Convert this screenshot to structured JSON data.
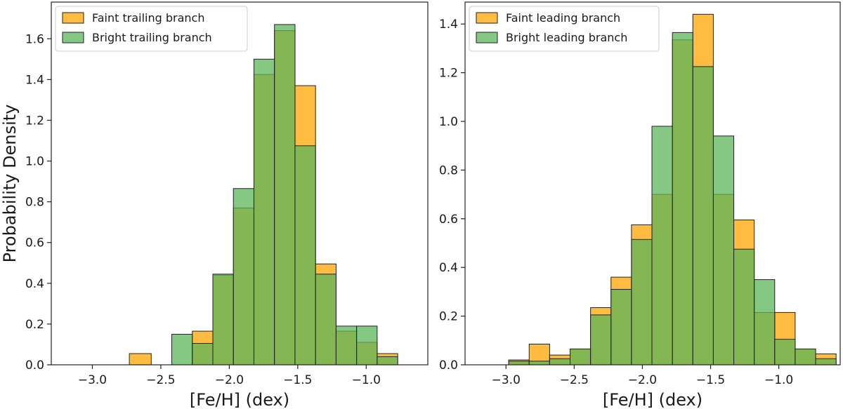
{
  "chart_data": [
    {
      "type": "bar",
      "title": "",
      "xlabel": "[Fe/H] (dex)",
      "ylabel": "Probability Density",
      "xlim": [
        -3.3,
        -0.55
      ],
      "ylim": [
        0,
        1.78
      ],
      "xticks": [
        -3.0,
        -2.5,
        -2.0,
        -1.5,
        -1.0
      ],
      "xtick_labels": [
        "−3.0",
        "−2.5",
        "−2.0",
        "−1.5",
        "−1.0"
      ],
      "yticks": [
        0.0,
        0.2,
        0.4,
        0.6,
        0.8,
        1.0,
        1.2,
        1.4,
        1.6
      ],
      "ytick_labels": [
        "0.0",
        "0.2",
        "0.4",
        "0.6",
        "0.8",
        "1.0",
        "1.2",
        "1.4",
        "1.6"
      ],
      "legend_position": "top-left",
      "series": [
        {
          "name": "Faint trailing branch",
          "color": "#ffa500",
          "bin_edges": [
            -2.73,
            -2.57,
            -2.42,
            -2.27,
            -2.12,
            -1.97,
            -1.82,
            -1.67,
            -1.52,
            -1.37,
            -1.22,
            -1.07,
            -0.92,
            -0.77
          ],
          "values": [
            0.055,
            0.0,
            0.0,
            0.165,
            0.44,
            0.77,
            1.425,
            1.64,
            1.37,
            0.495,
            0.165,
            0.11,
            0.055
          ]
        },
        {
          "name": "Bright trailing branch",
          "color": "#5bb55b",
          "bin_edges": [
            -2.73,
            -2.57,
            -2.42,
            -2.27,
            -2.12,
            -1.97,
            -1.82,
            -1.67,
            -1.52,
            -1.37,
            -1.22,
            -1.07,
            -0.92,
            -0.77
          ],
          "values": [
            0.0,
            0.0,
            0.15,
            0.105,
            0.445,
            0.865,
            1.5,
            1.67,
            1.075,
            0.445,
            0.19,
            0.19,
            0.04
          ]
        }
      ]
    },
    {
      "type": "bar",
      "title": "",
      "xlabel": "[Fe/H] (dex)",
      "ylabel": "",
      "xlim": [
        -3.3,
        -0.55
      ],
      "ylim": [
        0,
        1.49
      ],
      "xticks": [
        -3.0,
        -2.5,
        -2.0,
        -1.5,
        -1.0
      ],
      "xtick_labels": [
        "−3.0",
        "−2.5",
        "−2.0",
        "−1.5",
        "−1.0"
      ],
      "yticks": [
        0.0,
        0.2,
        0.4,
        0.6,
        0.8,
        1.0,
        1.2,
        1.4
      ],
      "ytick_labels": [
        "0.0",
        "0.2",
        "0.4",
        "0.6",
        "0.8",
        "1.0",
        "1.2",
        "1.4"
      ],
      "legend_position": "top-left",
      "series": [
        {
          "name": "Faint leading branch",
          "color": "#ffa500",
          "bin_edges": [
            -2.98,
            -2.83,
            -2.68,
            -2.53,
            -2.38,
            -2.23,
            -2.08,
            -1.93,
            -1.78,
            -1.63,
            -1.48,
            -1.33,
            -1.18,
            -1.03,
            -0.88,
            -0.73,
            -0.58
          ],
          "values": [
            0.02,
            0.085,
            0.04,
            0.065,
            0.235,
            0.36,
            0.575,
            0.7,
            1.335,
            1.44,
            0.7,
            0.595,
            0.215,
            0.215,
            0.065,
            0.045
          ]
        },
        {
          "name": "Bright leading branch",
          "color": "#5bb55b",
          "bin_edges": [
            -2.98,
            -2.83,
            -2.68,
            -2.53,
            -2.38,
            -2.23,
            -2.08,
            -1.93,
            -1.78,
            -1.63,
            -1.48,
            -1.33,
            -1.18,
            -1.03,
            -0.88,
            -0.73,
            -0.58
          ],
          "values": [
            0.015,
            0.015,
            0.025,
            0.065,
            0.205,
            0.31,
            0.515,
            0.98,
            1.365,
            1.225,
            0.94,
            0.475,
            0.35,
            0.105,
            0.065,
            0.025
          ]
        }
      ]
    }
  ]
}
